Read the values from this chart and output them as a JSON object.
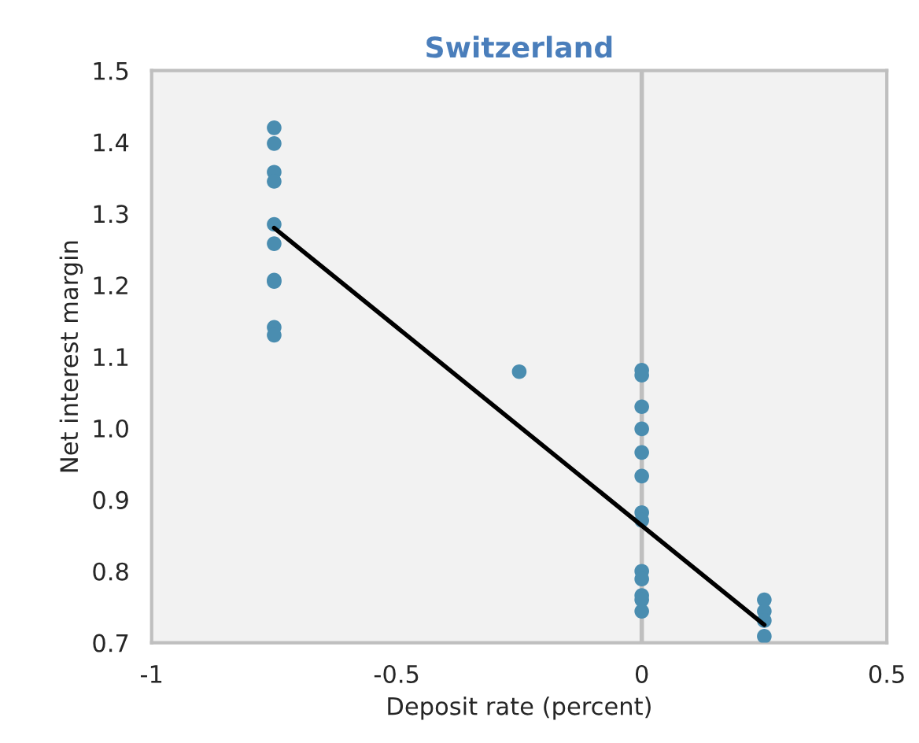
{
  "chart_data": {
    "type": "scatter",
    "title": "Switzerland",
    "xlabel": "Deposit rate (percent)",
    "ylabel": "Net interest margin",
    "xlim": [
      -1,
      0.5
    ],
    "xticks": [
      -1,
      -0.5,
      0,
      0.5
    ],
    "ylim": [
      0.7,
      1.5
    ],
    "yticks": [
      {
        "value": 0.7,
        "label": "0.7"
      },
      {
        "value": 0.8,
        "label": "0.8"
      },
      {
        "value": 0.9,
        "label": "0.9"
      },
      {
        "value": 1.0,
        "label": "1.0"
      },
      {
        "value": 1.1,
        "label": "1.1"
      },
      {
        "value": 1.2,
        "label": "1.2"
      },
      {
        "value": 1.3,
        "label": "1.3"
      },
      {
        "value": 1.4,
        "label": "1.4"
      },
      {
        "value": 1.5,
        "label": "1.5"
      }
    ],
    "grid": false,
    "legend": false,
    "ref_lines": [
      {
        "axis": "x",
        "value": 0,
        "color": "#bfbfbf"
      }
    ],
    "series": [
      {
        "marker": "circle",
        "color": "#4a8db0",
        "x": [
          -0.75,
          -0.75,
          -0.75,
          -0.75,
          -0.75,
          -0.75,
          -0.75,
          -0.75,
          -0.75,
          -0.75,
          -0.25,
          0,
          0,
          0,
          0,
          0,
          0,
          0,
          0,
          0,
          0,
          0,
          0,
          0,
          0.25,
          0.25,
          0.25,
          0.25
        ],
        "values": [
          1.42,
          1.398,
          1.358,
          1.345,
          1.285,
          1.258,
          1.207,
          1.205,
          1.141,
          1.13,
          1.079,
          1.081,
          1.074,
          1.03,
          0.999,
          0.966,
          0.933,
          0.882,
          0.871,
          0.8,
          0.789,
          0.766,
          0.76,
          0.744,
          0.76,
          0.744,
          0.731,
          0.709
        ]
      },
      {
        "type": "line",
        "marker": "none",
        "color": "#000000",
        "x": [
          -0.75,
          0.25
        ],
        "values": [
          1.28,
          0.725
        ]
      }
    ]
  }
}
